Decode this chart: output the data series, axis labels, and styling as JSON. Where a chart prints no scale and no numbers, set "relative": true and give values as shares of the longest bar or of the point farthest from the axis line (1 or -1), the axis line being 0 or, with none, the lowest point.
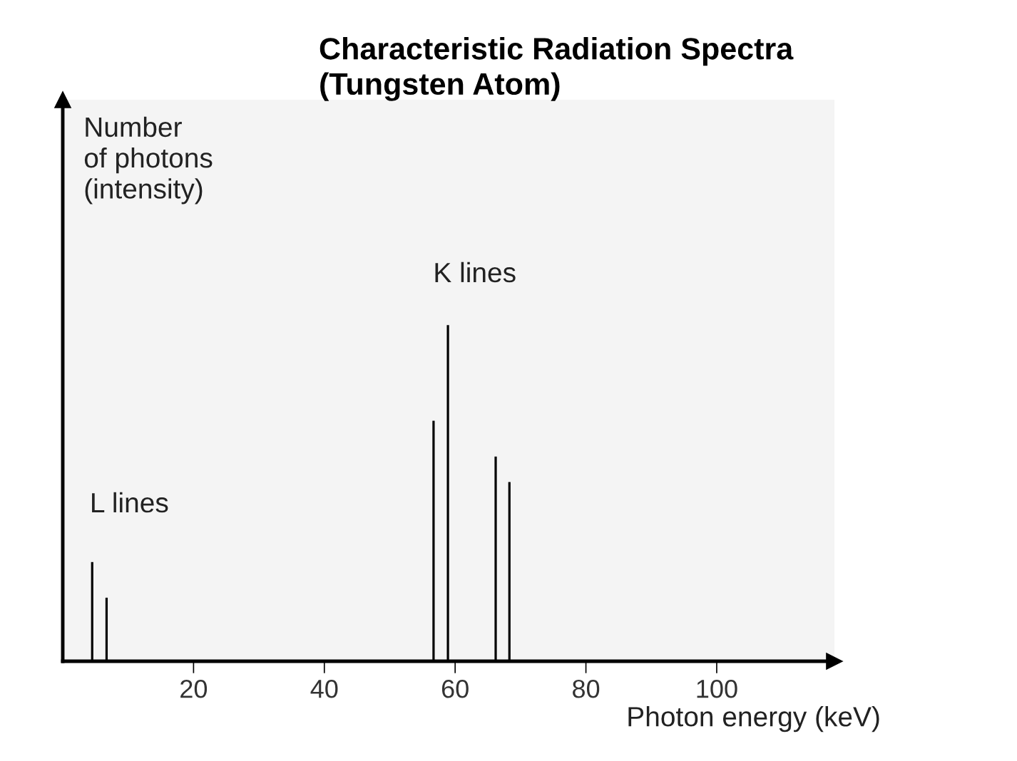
{
  "chart_data": {
    "type": "bar",
    "title": "Characteristic Radiation Spectra\n(Tungsten Atom)",
    "xlabel": "Photon energy (keV)",
    "ylabel": "Number\nof photons\n(intensity)",
    "x": [
      4.5,
      6.7,
      56.7,
      58.9,
      66.2,
      68.3
    ],
    "values": [
      0.295,
      0.189,
      0.715,
      1,
      0.609,
      0.533
    ],
    "color": "#000000",
    "relative": true,
    "xlim": [
      0,
      118
    ],
    "xticks": [
      20,
      40,
      60,
      80,
      100
    ],
    "grid": false,
    "annotations": [
      "L lines",
      "K lines"
    ]
  }
}
